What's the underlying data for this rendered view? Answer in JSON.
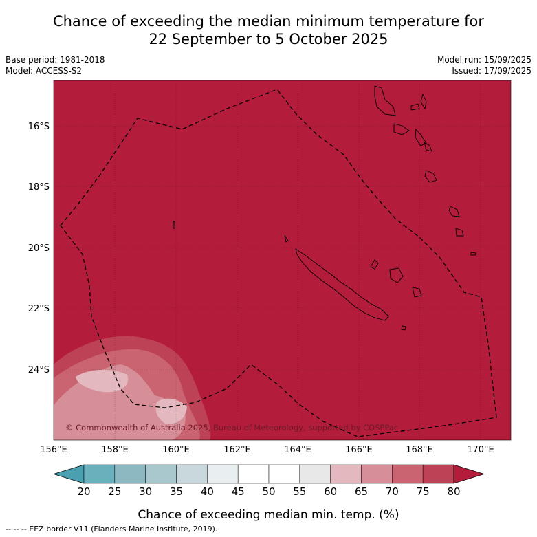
{
  "title": {
    "line1": "Chance of exceeding the median minimum temperature for",
    "line2": "22 September to 5 October 2025"
  },
  "meta": {
    "base_period": "Base period: 1981-2018",
    "model": "Model: ACCESS-S2",
    "model_run": "Model run: 15/09/2025",
    "issued": "Issued: 17/09/2025"
  },
  "map": {
    "lat_labels": [
      "16°S",
      "18°S",
      "20°S",
      "22°S",
      "24°S"
    ],
    "lon_labels": [
      "156°E",
      "158°E",
      "160°E",
      "162°E",
      "164°E",
      "166°E",
      "168°E",
      "170°E"
    ],
    "copyright": "© Commonwealth of Australia 2025, Bureau of Meteorology, supported by COSPPac",
    "colors": {
      "background_class": "#b31c3b",
      "outline": "#000000"
    }
  },
  "colorbar": {
    "ticks": [
      "20",
      "25",
      "30",
      "35",
      "40",
      "45",
      "50",
      "55",
      "60",
      "65",
      "70",
      "75",
      "80"
    ],
    "label": "Chance of exceeding median min. temp. (%)",
    "colors": [
      "#4aa0b0",
      "#6aafbc",
      "#8cb8c2",
      "#a9c8cd",
      "#c8d8dd",
      "#e9eff1",
      "#ffffff",
      "#ffffff",
      "#e8e8e8",
      "#e3b8bf",
      "#d68e98",
      "#c96470",
      "#bd4256",
      "#b31c3b"
    ]
  },
  "footer": "--  --  -- EEZ border V11 (Flanders Marine Institute, 2019)."
}
